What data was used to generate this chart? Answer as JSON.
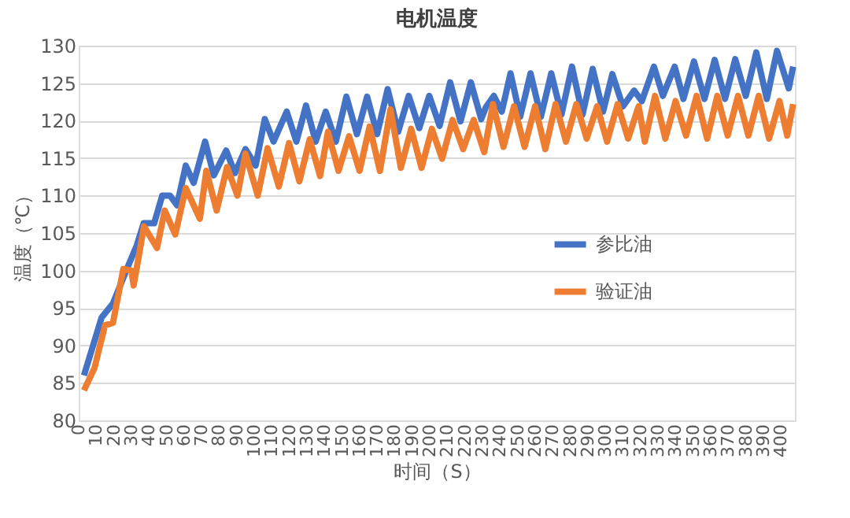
{
  "chart_data": {
    "type": "line",
    "title": "电机温度",
    "xlabel": "时间（S）",
    "ylabel": "温度（℃）",
    "xlim": [
      0,
      408
    ],
    "xticks": [
      0,
      10,
      20,
      30,
      40,
      50,
      60,
      70,
      80,
      90,
      100,
      110,
      120,
      130,
      140,
      150,
      160,
      170,
      180,
      190,
      200,
      210,
      220,
      230,
      240,
      250,
      260,
      270,
      280,
      290,
      300,
      310,
      320,
      330,
      340,
      350,
      360,
      370,
      380,
      390,
      400
    ],
    "ylim": [
      80,
      130
    ],
    "yticks": [
      80,
      85,
      90,
      95,
      100,
      105,
      110,
      115,
      120,
      125,
      130
    ],
    "grid": "y",
    "legend": "right",
    "line_style": "solid",
    "marker": "none",
    "series": [
      {
        "name": "参比油",
        "color": "#4472c4",
        "x": [
          3,
          13,
          19.5,
          28,
          33,
          37,
          43,
          47.6,
          52,
          56,
          61,
          65.5,
          72,
          77,
          84,
          89,
          95,
          100.8,
          106,
          111,
          118.5,
          124,
          129.5,
          135,
          140.7,
          146.5,
          152.5,
          158.5,
          164.3,
          170,
          176,
          182,
          188,
          194,
          199.7,
          205.6,
          211.6,
          217.5,
          223.4,
          229.3,
          232,
          236.5,
          241,
          246,
          251.5,
          257.4,
          263.3,
          269.2,
          275,
          281,
          287,
          292.8,
          298.7,
          304,
          310,
          316.4,
          320.8,
          327.7,
          332.8,
          339.5,
          344.5,
          350.5,
          356.5,
          362.3,
          368.2,
          374,
          380,
          386,
          392,
          397.8,
          404.5,
          407
        ],
        "values": [
          86,
          93.7,
          95.6,
          100.5,
          103.3,
          106.3,
          106.3,
          110,
          110,
          108.7,
          114,
          111.7,
          117.2,
          112.7,
          116,
          113,
          116.2,
          114,
          120.2,
          117.2,
          121.2,
          117.2,
          122,
          117.2,
          121.2,
          117.2,
          123.2,
          118.2,
          123.2,
          118.2,
          124.2,
          118.5,
          123.3,
          119,
          123.3,
          119.3,
          125.1,
          119.9,
          125.1,
          120.2,
          121.8,
          123.3,
          121.2,
          126.3,
          120.5,
          126.3,
          120.5,
          126.3,
          120.8,
          127.2,
          120.8,
          126.9,
          121.2,
          126.2,
          121.9,
          124,
          122.6,
          127.2,
          123.3,
          127.2,
          122.9,
          127.9,
          122.9,
          128.1,
          122.9,
          128.2,
          123.3,
          129.1,
          122.9,
          129.3,
          124.3,
          127.2
        ]
      },
      {
        "name": "验证油",
        "color": "#ed7d31",
        "x": [
          3,
          9,
          15,
          19.5,
          25.4,
          30,
          31.3,
          37.2,
          44.6,
          49,
          55,
          61,
          69,
          72.7,
          78.6,
          84.5,
          90.4,
          95,
          102,
          107.6,
          114,
          119.8,
          125.7,
          131.6,
          137.5,
          142,
          148,
          154,
          160,
          165.7,
          171.6,
          177.6,
          183.5,
          189.4,
          195.3,
          201.2,
          207,
          213,
          219,
          225,
          231,
          236,
          242,
          248,
          254,
          260,
          265.8,
          271.7,
          277.6,
          283.5,
          289.4,
          295.3,
          301,
          307,
          313,
          319,
          322.5,
          328.3,
          334.2,
          340,
          346,
          352,
          358,
          363.8,
          369.7,
          375.6,
          381.5,
          387.4,
          393.3,
          399.2,
          403.6,
          407
        ],
        "values": [
          84,
          87,
          92.7,
          93,
          100.2,
          100,
          98,
          105.9,
          103,
          108,
          104.8,
          111,
          106.9,
          113.3,
          108,
          113.8,
          110,
          115.6,
          110,
          116.3,
          111.2,
          117,
          111.9,
          117.5,
          112.6,
          118.5,
          113.3,
          117.9,
          113.3,
          119.2,
          113.3,
          121.5,
          113.7,
          118.9,
          113.7,
          118.9,
          114.9,
          120.1,
          116.2,
          120.1,
          115.8,
          122.2,
          116.5,
          121.9,
          116.5,
          121.9,
          116.2,
          122.2,
          117.2,
          122.2,
          117.6,
          121.9,
          117.2,
          122.2,
          117.6,
          121.9,
          117.2,
          123.3,
          117.6,
          122.6,
          118,
          123.3,
          117.6,
          123.3,
          118,
          123.3,
          118,
          123.3,
          117.6,
          122.6,
          118,
          122.2
        ]
      }
    ]
  }
}
